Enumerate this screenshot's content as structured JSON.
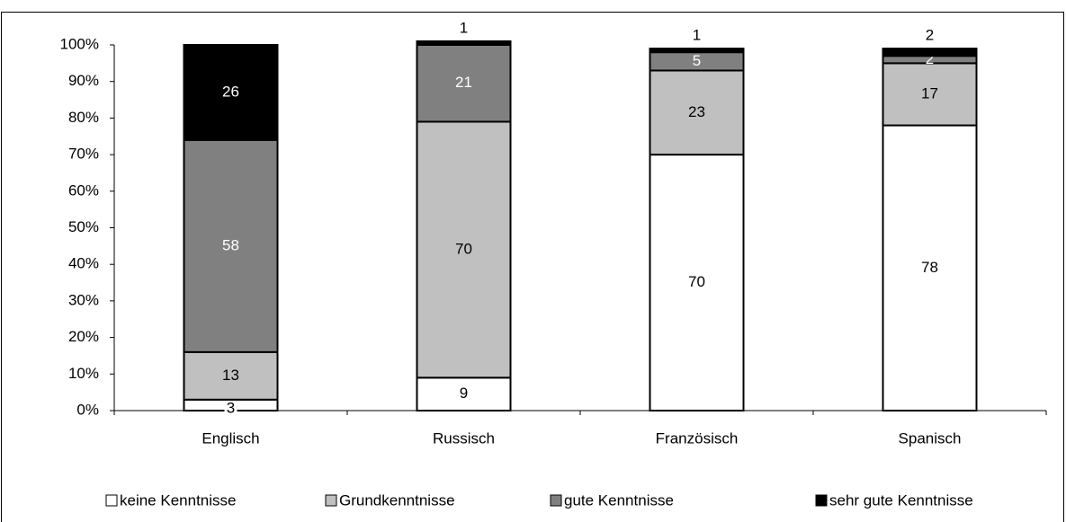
{
  "chart_data": {
    "type": "stacked_bar",
    "categories": [
      "Englisch",
      "Russisch",
      "Französisch",
      "Spanisch"
    ],
    "series": [
      {
        "name": "keine Kenntnisse",
        "color": "#ffffff",
        "values": [
          3,
          9,
          70,
          78
        ]
      },
      {
        "name": "Grundkenntnisse",
        "color": "#c0c0c0",
        "values": [
          13,
          70,
          23,
          17
        ]
      },
      {
        "name": "gute Kenntnisse",
        "color": "#808080",
        "values": [
          58,
          21,
          5,
          2
        ]
      },
      {
        "name": "sehr gute Kenntnisse",
        "color": "#000000",
        "values": [
          26,
          1,
          1,
          2
        ]
      }
    ],
    "ylim": [
      0,
      100
    ],
    "yticks": [
      {
        "value": 0,
        "label": "0%"
      },
      {
        "value": 10,
        "label": "10%"
      },
      {
        "value": 20,
        "label": "20%"
      },
      {
        "value": 30,
        "label": "30%"
      },
      {
        "value": 40,
        "label": "40%"
      },
      {
        "value": 50,
        "label": "50%"
      },
      {
        "value": 60,
        "label": "60%"
      },
      {
        "value": 70,
        "label": "70%"
      },
      {
        "value": 80,
        "label": "80%"
      },
      {
        "value": 90,
        "label": "90%"
      },
      {
        "value": 100,
        "label": "100%"
      }
    ],
    "legend": "bottom"
  }
}
